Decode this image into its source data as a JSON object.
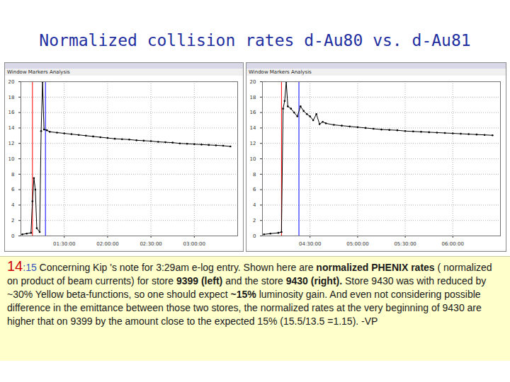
{
  "slide": {
    "title": "Normalized collision rates d-Au80 vs. d-Au81",
    "menu": "Window   Markers   Analysis",
    "caption": [
      {
        "text": "14",
        "color": "#cc0000"
      },
      {
        "text": ":15",
        "color": "#3355bb"
      },
      {
        "text": " Concerning Kip 's note for 3:29am e-log entry. Shown here are "
      },
      {
        "text": "normalized PHENIX rates",
        "bold": true
      },
      {
        "text": " ( normalized on product of beam currents) for store "
      },
      {
        "text": "9399 (left)",
        "bold": true
      },
      {
        "text": " and the store "
      },
      {
        "text": "9430 (right).",
        "bold": true
      },
      {
        "text": " Store 9430 was with reduced by ~30% Yellow beta-functions, so one should expect "
      },
      {
        "text": "~15%",
        "bold": true
      },
      {
        "text": " luminosity gain. And even not considering possible difference in the emittance between those two stores, the normalized rates at the very beginning of 9430 are higher that on 9399 by the amount close to the expected 15% (15.5/13.5 =1.15). -VP"
      }
    ]
  },
  "chart_data": [
    {
      "type": "line",
      "grid": true,
      "color": "#000000",
      "marker": "dot",
      "xlim": [
        0,
        150
      ],
      "ylim": [
        0,
        20
      ],
      "xticks": [
        {
          "value": 30,
          "label": "01:30:00"
        },
        {
          "value": 60,
          "label": "02:00:00"
        },
        {
          "value": 90,
          "label": "02:30:00"
        },
        {
          "value": 120,
          "label": "03:00:00"
        }
      ],
      "yticks": [
        0,
        2,
        4,
        6,
        8,
        10,
        12,
        14,
        16,
        18,
        20
      ],
      "x": [
        1,
        4,
        7,
        8,
        9,
        10,
        11,
        13,
        14,
        15,
        16,
        18,
        20,
        25,
        30,
        35,
        40,
        45,
        50,
        55,
        60,
        65,
        70,
        75,
        80,
        85,
        90,
        95,
        100,
        105,
        110,
        115,
        120,
        125,
        130,
        135,
        140,
        145
      ],
      "values": [
        0.2,
        0.3,
        0.4,
        4.5,
        7.5,
        6,
        1,
        0.5,
        13.6,
        20,
        13.8,
        13.7,
        13.5,
        13.4,
        13.3,
        13.2,
        13.1,
        13.0,
        12.9,
        12.8,
        12.7,
        12.6,
        12.55,
        12.5,
        12.4,
        12.35,
        12.3,
        12.2,
        12.15,
        12.1,
        12.0,
        11.95,
        11.9,
        11.85,
        11.8,
        11.75,
        11.7,
        11.6
      ],
      "vlines": [
        {
          "x": 8,
          "color": "#ff0000"
        },
        {
          "x": 17,
          "color": "#0000ff"
        }
      ]
    },
    {
      "type": "line",
      "grid": true,
      "color": "#000000",
      "marker": "dot",
      "xlim": [
        0,
        150
      ],
      "ylim": [
        0,
        20
      ],
      "xticks": [
        {
          "value": 30,
          "label": "04:30:00"
        },
        {
          "value": 60,
          "label": "05:00:00"
        },
        {
          "value": 90,
          "label": "05:30:00"
        },
        {
          "value": 120,
          "label": "06:00:00"
        }
      ],
      "yticks": [
        0,
        2,
        4,
        6,
        8,
        10,
        12,
        14,
        16,
        18,
        20
      ],
      "x": [
        1,
        5,
        10,
        12,
        13,
        14,
        15,
        16,
        18,
        20,
        22,
        24,
        26,
        28,
        30,
        32,
        34,
        36,
        38,
        40,
        45,
        50,
        55,
        60,
        65,
        70,
        75,
        80,
        85,
        90,
        95,
        100,
        105,
        110,
        115,
        120,
        125,
        130,
        135,
        140,
        145
      ],
      "values": [
        0.2,
        0.3,
        0.4,
        0.5,
        16.5,
        17.5,
        20,
        16.8,
        16.5,
        16.0,
        15.5,
        16.8,
        16.2,
        15.8,
        15.5,
        15.0,
        15.8,
        14.5,
        14.8,
        14.6,
        14.4,
        14.3,
        14.2,
        14.1,
        14.0,
        13.9,
        13.8,
        13.75,
        13.7,
        13.6,
        13.55,
        13.5,
        13.45,
        13.4,
        13.35,
        13.3,
        13.25,
        13.2,
        13.15,
        13.1,
        13.05
      ],
      "vlines": [
        {
          "x": 12,
          "color": "#ff0000"
        },
        {
          "x": 23,
          "color": "#0000ff"
        }
      ]
    }
  ]
}
